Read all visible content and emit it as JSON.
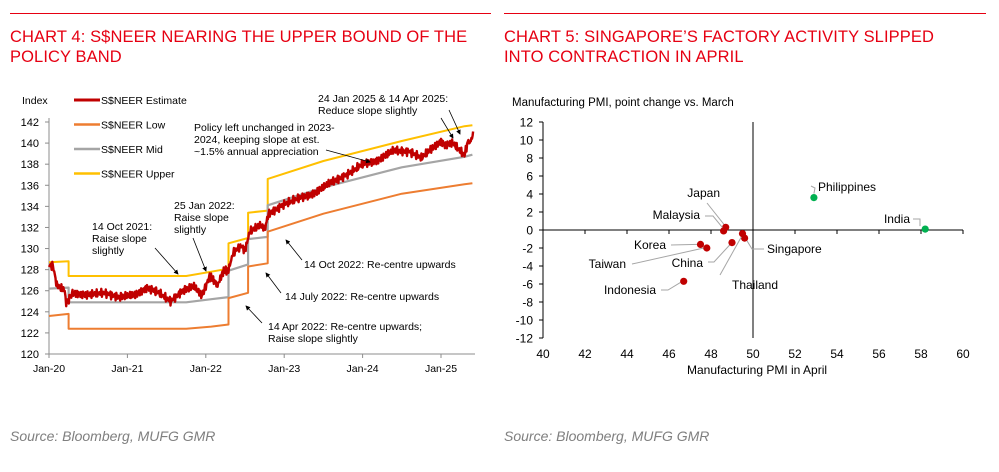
{
  "colors": {
    "accent": "#e60012",
    "estimate": "#c00000",
    "low": "#ed7d31",
    "mid": "#a5a5a5",
    "upper": "#ffc000",
    "green": "#00b050",
    "red_dot": "#c00000",
    "source": "#7f7f7f"
  },
  "chart4": {
    "title_line1": "CHART 4: S$NEER NEARING THE UPPER BOUND OF THE",
    "title_line2": "POLICY BAND",
    "source": "Source: Bloomberg, MUFG GMR"
  },
  "chart5": {
    "title_line1": "CHART 5: SINGAPORE’S FACTORY ACTIVITY SLIPPED",
    "title_line2": "INTO CONTRACTION IN APRIL",
    "source": "Source: Bloomberg, MUFG GMR"
  },
  "chart_data": [
    {
      "type": "line",
      "title": "CHART 4: S$NEER NEARING THE UPPER BOUND OF THE POLICY BAND",
      "ylabel": "Index",
      "xlabel": "",
      "ylim": [
        120,
        142
      ],
      "yticks": [
        120,
        122,
        124,
        126,
        128,
        130,
        132,
        134,
        136,
        138,
        140,
        142
      ],
      "xlim": [
        2020.0,
        2025.42
      ],
      "xticks": [
        {
          "v": 2020,
          "label": "Jan-20"
        },
        {
          "v": 2021,
          "label": "Jan-21"
        },
        {
          "v": 2022,
          "label": "Jan-22"
        },
        {
          "v": 2023,
          "label": "Jan-23"
        },
        {
          "v": 2024,
          "label": "Jan-24"
        },
        {
          "v": 2025,
          "label": "Jan-25"
        }
      ],
      "legend": [
        "S$NEER Estimate",
        "S$NEER Low",
        "S$NEER Mid",
        "S$NEER Upper"
      ],
      "legend_position": "top-left",
      "series": [
        {
          "name": "S$NEER Upper",
          "key": "upper",
          "points": [
            [
              2020.0,
              128.7
            ],
            [
              2020.25,
              128.8
            ],
            [
              2020.25,
              127.4
            ],
            [
              2021.0,
              127.4
            ],
            [
              2021.75,
              127.4
            ],
            [
              2022.07,
              127.8
            ],
            [
              2022.29,
              128.1
            ],
            [
              2022.29,
              130.5
            ],
            [
              2022.54,
              131.0
            ],
            [
              2022.54,
              133.4
            ],
            [
              2022.79,
              133.6
            ],
            [
              2022.79,
              136.6
            ],
            [
              2023.5,
              138.3
            ],
            [
              2024.5,
              140.2
            ],
            [
              2025.3,
              141.6
            ],
            [
              2025.4,
              141.7
            ]
          ]
        },
        {
          "name": "S$NEER Mid",
          "key": "mid",
          "points": [
            [
              2020.0,
              126.2
            ],
            [
              2020.25,
              126.3
            ],
            [
              2020.25,
              124.9
            ],
            [
              2021.0,
              124.9
            ],
            [
              2021.75,
              124.9
            ],
            [
              2022.07,
              125.2
            ],
            [
              2022.29,
              125.4
            ],
            [
              2022.29,
              127.9
            ],
            [
              2022.54,
              128.5
            ],
            [
              2022.54,
              130.9
            ],
            [
              2022.79,
              131.1
            ],
            [
              2022.79,
              134.1
            ],
            [
              2023.5,
              135.8
            ],
            [
              2024.5,
              137.7
            ],
            [
              2025.3,
              138.7
            ],
            [
              2025.4,
              138.9
            ]
          ]
        },
        {
          "name": "S$NEER Low",
          "key": "low",
          "points": [
            [
              2020.0,
              123.6
            ],
            [
              2020.25,
              123.8
            ],
            [
              2020.25,
              122.4
            ],
            [
              2021.0,
              122.4
            ],
            [
              2021.75,
              122.4
            ],
            [
              2022.07,
              122.6
            ],
            [
              2022.29,
              122.8
            ],
            [
              2022.29,
              125.3
            ],
            [
              2022.54,
              125.8
            ],
            [
              2022.54,
              128.3
            ],
            [
              2022.79,
              128.6
            ],
            [
              2022.79,
              131.6
            ],
            [
              2023.5,
              133.3
            ],
            [
              2024.5,
              135.2
            ],
            [
              2025.3,
              136.1
            ],
            [
              2025.4,
              136.2
            ]
          ]
        },
        {
          "name": "S$NEER Estimate",
          "key": "estimate",
          "points": [
            [
              2020.0,
              128.4
            ],
            [
              2020.05,
              128.4
            ],
            [
              2020.1,
              126.5
            ],
            [
              2020.2,
              126.0
            ],
            [
              2020.22,
              124.8
            ],
            [
              2020.3,
              125.8
            ],
            [
              2020.5,
              125.6
            ],
            [
              2020.7,
              125.8
            ],
            [
              2020.9,
              125.4
            ],
            [
              2021.1,
              125.6
            ],
            [
              2021.25,
              126.3
            ],
            [
              2021.4,
              125.8
            ],
            [
              2021.55,
              125.0
            ],
            [
              2021.7,
              126.0
            ],
            [
              2021.85,
              126.4
            ],
            [
              2021.95,
              125.5
            ],
            [
              2022.05,
              127.4
            ],
            [
              2022.12,
              126.8
            ],
            [
              2022.15,
              126.5
            ],
            [
              2022.22,
              127.8
            ],
            [
              2022.29,
              128.0
            ],
            [
              2022.35,
              129.6
            ],
            [
              2022.45,
              130.3
            ],
            [
              2022.5,
              129.8
            ],
            [
              2022.56,
              131.6
            ],
            [
              2022.7,
              132.2
            ],
            [
              2022.75,
              131.8
            ],
            [
              2022.8,
              133.3
            ],
            [
              2023.0,
              134.2
            ],
            [
              2023.2,
              134.8
            ],
            [
              2023.4,
              135.3
            ],
            [
              2023.6,
              136.3
            ],
            [
              2023.8,
              137.0
            ],
            [
              2024.0,
              138.0
            ],
            [
              2024.2,
              138.4
            ],
            [
              2024.4,
              139.3
            ],
            [
              2024.6,
              139.2
            ],
            [
              2024.75,
              138.6
            ],
            [
              2024.9,
              139.6
            ],
            [
              2025.0,
              140.2
            ],
            [
              2025.05,
              139.8
            ],
            [
              2025.15,
              140.0
            ],
            [
              2025.25,
              139.2
            ],
            [
              2025.3,
              138.9
            ],
            [
              2025.35,
              140.3
            ],
            [
              2025.38,
              140.0
            ],
            [
              2025.41,
              141.1
            ]
          ]
        }
      ],
      "annotations": [
        {
          "text": [
            "24 Jan 2025 & 14 Apr 2025:",
            "Reduce slope slightly"
          ]
        },
        {
          "text": [
            "Policy left unchanged in 2023-",
            "2024, keeping slope at est.",
            "~1.5% annual appreciation"
          ]
        },
        {
          "text": [
            "25 Jan 2022:",
            "Raise slope",
            "slightly"
          ]
        },
        {
          "text": [
            "14 Oct 2021:",
            "Raise slope",
            "slightly"
          ]
        },
        {
          "text": [
            "14 Oct 2022: Re-centre upwards"
          ]
        },
        {
          "text": [
            "14 July 2022: Re-centre upwards"
          ]
        },
        {
          "text": [
            "14 Apr 2022: Re-centre upwards;",
            "Raise slope slightly"
          ]
        }
      ]
    },
    {
      "type": "scatter",
      "title": "CHART 5: SINGAPORE’S FACTORY ACTIVITY SLIPPED INTO CONTRACTION IN APRIL",
      "ylabel": "Manufacturing PMI, point change vs. March",
      "xlabel": "Manufacturing PMI in April",
      "xlim": [
        40,
        60
      ],
      "ylim": [
        -12,
        12
      ],
      "xticks": [
        40,
        42,
        44,
        46,
        48,
        50,
        52,
        54,
        56,
        58,
        60
      ],
      "yticks": [
        -12,
        -10,
        -8,
        -6,
        -4,
        -2,
        0,
        2,
        4,
        6,
        8,
        10,
        12
      ],
      "reference_lines": {
        "x": 50,
        "y": 0
      },
      "points": [
        {
          "label": "Philippines",
          "x": 52.9,
          "y": 3.6,
          "color": "green"
        },
        {
          "label": "India",
          "x": 58.2,
          "y": 0.1,
          "color": "green"
        },
        {
          "label": "Japan",
          "x": 48.7,
          "y": 0.3,
          "color": "red"
        },
        {
          "label": "Malaysia",
          "x": 48.6,
          "y": -0.1,
          "color": "red"
        },
        {
          "label": "Singapore",
          "x": 49.6,
          "y": -0.9,
          "color": "red"
        },
        {
          "label": "Thailand",
          "x": 49.5,
          "y": -0.4,
          "color": "red"
        },
        {
          "label": "China",
          "x": 49.0,
          "y": -1.4,
          "color": "red"
        },
        {
          "label": "Korea",
          "x": 47.5,
          "y": -1.6,
          "color": "red"
        },
        {
          "label": "Taiwan",
          "x": 47.8,
          "y": -2.0,
          "color": "red"
        },
        {
          "label": "Indonesia",
          "x": 46.7,
          "y": -5.7,
          "color": "red"
        }
      ]
    }
  ]
}
